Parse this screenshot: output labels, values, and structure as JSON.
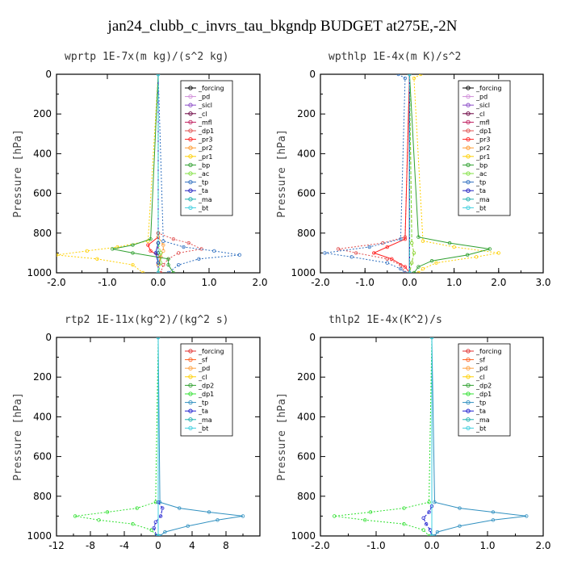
{
  "page": {
    "title": "jan24_clubb_c_invrs_tau_bkgndp  BUDGET at275E,-2N"
  },
  "chart_data": [
    {
      "type": "line",
      "title": "wprtp  1E-7x(m kg)/(s^2 kg)",
      "ylabel": "Pressure [hPa]",
      "xlim": [
        -2.0,
        2.0
      ],
      "ylim": [
        1000,
        0
      ],
      "xticks": [
        -2.0,
        -1.0,
        0.0,
        1.0,
        2.0
      ],
      "xtick_labels": [
        "-2.0",
        "-1.0",
        "0.0",
        "1.0",
        "2.0"
      ],
      "yticks": [
        0,
        200,
        400,
        600,
        800,
        1000
      ],
      "ytick_labels": [
        "0",
        "200",
        "400",
        "600",
        "800",
        "1000"
      ],
      "legend_position": "top-right",
      "series": [
        {
          "name": "_forcing",
          "color": "#000000",
          "pressure": [
            0,
            800,
            850,
            900,
            950,
            1000
          ],
          "values": [
            0,
            0,
            0,
            0,
            0,
            0
          ]
        },
        {
          "name": "_pd",
          "color": "#d08cd8",
          "pressure": [
            0,
            1000
          ],
          "values": [
            0,
            0
          ]
        },
        {
          "name": "_sicl",
          "color": "#8c4cc8",
          "pressure": [
            0,
            1000
          ],
          "values": [
            0,
            0
          ]
        },
        {
          "name": "_cl",
          "color": "#6a0040",
          "pressure": [
            0,
            1000
          ],
          "values": [
            0,
            0
          ]
        },
        {
          "name": "_mfl",
          "color": "#c02060",
          "pressure": [
            0,
            1000
          ],
          "values": [
            0,
            0
          ]
        },
        {
          "name": "_dp1",
          "color": "#e05050",
          "pressure": [
            0,
            800,
            830,
            850,
            880,
            900,
            930,
            960,
            1000
          ],
          "values": [
            0,
            0,
            0.3,
            0.6,
            0.85,
            0.4,
            0.2,
            0.1,
            0.05
          ]
        },
        {
          "name": "_pr3",
          "color": "#ff2020",
          "pressure": [
            0,
            820,
            860,
            890,
            920,
            960,
            1000
          ],
          "values": [
            0,
            0,
            -0.2,
            -0.15,
            0.05,
            0,
            0
          ]
        },
        {
          "name": "_pr2",
          "color": "#ff9a30",
          "pressure": [
            0,
            820,
            860,
            890,
            920,
            960,
            1000
          ],
          "values": [
            0,
            0,
            0.1,
            0.1,
            0.05,
            0,
            0
          ]
        },
        {
          "name": "_pr1",
          "color": "#ffd000",
          "pressure": [
            0,
            840,
            870,
            890,
            910,
            930,
            960,
            1000
          ],
          "values": [
            0,
            -0.2,
            -0.8,
            -1.4,
            -2.0,
            -1.2,
            -0.5,
            -0.3
          ]
        },
        {
          "name": "_bp",
          "color": "#30a030",
          "pressure": [
            0,
            830,
            860,
            880,
            900,
            930,
            960,
            1000
          ],
          "values": [
            0,
            -0.15,
            -0.5,
            -0.9,
            -0.5,
            0.2,
            0.2,
            0.3
          ]
        },
        {
          "name": "_ac",
          "color": "#80e040",
          "pressure": [
            0,
            850,
            900,
            950,
            1000
          ],
          "values": [
            0,
            0,
            0.05,
            0.05,
            0
          ]
        },
        {
          "name": "_tp",
          "color": "#3070c0",
          "pressure": [
            0,
            840,
            870,
            890,
            910,
            930,
            960,
            1000
          ],
          "values": [
            0,
            0.1,
            0.5,
            1.1,
            1.6,
            0.8,
            0.4,
            0.2
          ]
        },
        {
          "name": "_ta",
          "color": "#2020c0",
          "pressure": [
            0,
            850,
            900,
            950,
            1000
          ],
          "values": [
            0,
            0,
            -0.05,
            0,
            0
          ]
        },
        {
          "name": "_ma",
          "color": "#20b0b0",
          "pressure": [
            0,
            1000
          ],
          "values": [
            0,
            0
          ]
        },
        {
          "name": "_bt",
          "color": "#40d0e0",
          "pressure": [
            0,
            1000
          ],
          "values": [
            0,
            0
          ]
        }
      ]
    },
    {
      "type": "line",
      "title": "wpthlp  1E-4x(m K)/s^2",
      "ylabel": "Pressure [hPa]",
      "xlim": [
        -2.0,
        3.0
      ],
      "ylim": [
        1000,
        0
      ],
      "xticks": [
        -2.0,
        -1.0,
        0.0,
        1.0,
        2.0,
        3.0
      ],
      "xtick_labels": [
        "-2.0",
        "-1.0",
        "0.0",
        "1.0",
        "2.0",
        "3.0"
      ],
      "yticks": [
        0,
        200,
        400,
        600,
        800,
        1000
      ],
      "ytick_labels": [
        "0",
        "200",
        "400",
        "600",
        "800",
        "1000"
      ],
      "legend_position": "top-right",
      "series": [
        {
          "name": "_forcing",
          "color": "#000000",
          "pressure": [
            0,
            1000
          ],
          "values": [
            0,
            0
          ]
        },
        {
          "name": "_pd",
          "color": "#d08cd8",
          "pressure": [
            0,
            1000
          ],
          "values": [
            0,
            0
          ]
        },
        {
          "name": "_sicl",
          "color": "#8c4cc8",
          "pressure": [
            0,
            1000
          ],
          "values": [
            0,
            0
          ]
        },
        {
          "name": "_cl",
          "color": "#6a0040",
          "pressure": [
            0,
            1000
          ],
          "values": [
            0,
            0
          ]
        },
        {
          "name": "_mfl",
          "color": "#c02060",
          "pressure": [
            0,
            1000
          ],
          "values": [
            0,
            0
          ]
        },
        {
          "name": "_dp1",
          "color": "#e05050",
          "pressure": [
            0,
            820,
            850,
            880,
            900,
            930,
            960,
            1000
          ],
          "values": [
            0,
            -0.1,
            -0.6,
            -1.6,
            -1.2,
            -0.5,
            -0.2,
            -0.1
          ]
        },
        {
          "name": "_pr3",
          "color": "#ff2020",
          "pressure": [
            0,
            830,
            870,
            900,
            930,
            970,
            1000
          ],
          "values": [
            0,
            -0.1,
            -0.5,
            -0.8,
            -0.4,
            -0.1,
            0
          ]
        },
        {
          "name": "_pr2",
          "color": "#ff9a30",
          "pressure": [
            0,
            850,
            900,
            950,
            1000
          ],
          "values": [
            0,
            0.05,
            0.1,
            0.05,
            0
          ]
        },
        {
          "name": "_pr1",
          "color": "#ffd000",
          "pressure": [
            0,
            20,
            840,
            870,
            900,
            920,
            950,
            980,
            1000
          ],
          "values": [
            0.25,
            0.1,
            0.3,
            1.0,
            2.0,
            1.5,
            0.6,
            0.3,
            0.2
          ]
        },
        {
          "name": "_bp",
          "color": "#30a030",
          "pressure": [
            0,
            820,
            850,
            880,
            910,
            940,
            970,
            1000
          ],
          "values": [
            0,
            0.2,
            0.9,
            1.8,
            1.3,
            0.5,
            0.2,
            0.1
          ]
        },
        {
          "name": "_ac",
          "color": "#80e040",
          "pressure": [
            0,
            850,
            900,
            950,
            1000
          ],
          "values": [
            0,
            0.05,
            0.1,
            0.05,
            0
          ]
        },
        {
          "name": "_tp",
          "color": "#3070c0",
          "pressure": [
            0,
            20,
            830,
            870,
            900,
            920,
            950,
            980,
            1000
          ],
          "values": [
            -0.25,
            -0.1,
            -0.2,
            -0.9,
            -1.9,
            -1.3,
            -0.5,
            -0.2,
            -0.1
          ]
        },
        {
          "name": "_ta",
          "color": "#2020c0",
          "pressure": [
            0,
            1000
          ],
          "values": [
            0,
            0
          ]
        },
        {
          "name": "_ma",
          "color": "#20b0b0",
          "pressure": [
            0,
            1000
          ],
          "values": [
            0,
            0
          ]
        },
        {
          "name": "_bt",
          "color": "#40d0e0",
          "pressure": [
            0,
            1000
          ],
          "values": [
            0,
            0
          ]
        }
      ]
    },
    {
      "type": "line",
      "title": "rtp2  1E-11x(kg^2)/(kg^2 s)",
      "ylabel": "Pressure [hPa]",
      "xlim": [
        -12,
        12
      ],
      "ylim": [
        1000,
        0
      ],
      "xticks": [
        -12,
        -8,
        -4,
        0,
        4,
        8
      ],
      "xtick_labels": [
        "-12",
        "-8",
        "-4",
        "0",
        "4",
        "8"
      ],
      "yticks": [
        0,
        200,
        400,
        600,
        800,
        1000
      ],
      "ytick_labels": [
        "0",
        "200",
        "400",
        "600",
        "800",
        "1000"
      ],
      "legend_position": "top-right",
      "series": [
        {
          "name": "_forcing",
          "color": "#e03030",
          "pressure": [
            0,
            1000
          ],
          "values": [
            0,
            0
          ]
        },
        {
          "name": "_sf",
          "color": "#ff6020",
          "pressure": [
            0,
            1000
          ],
          "values": [
            0,
            0
          ]
        },
        {
          "name": "_pd",
          "color": "#ffa040",
          "pressure": [
            0,
            1000
          ],
          "values": [
            0,
            0
          ]
        },
        {
          "name": "_cl",
          "color": "#ffd000",
          "pressure": [
            0,
            1000
          ],
          "values": [
            0,
            0
          ]
        },
        {
          "name": "_dp2",
          "color": "#30a030",
          "pressure": [
            0,
            1000
          ],
          "values": [
            0,
            0
          ]
        },
        {
          "name": "_dp1",
          "color": "#30e030",
          "pressure": [
            0,
            830,
            860,
            880,
            900,
            920,
            940,
            970,
            1000
          ],
          "values": [
            0,
            -0.3,
            -2.5,
            -6.0,
            -9.8,
            -7.0,
            -3.0,
            -0.8,
            -0.2
          ]
        },
        {
          "name": "_tp",
          "color": "#3090c0",
          "pressure": [
            0,
            830,
            860,
            880,
            900,
            920,
            950,
            980,
            1000
          ],
          "values": [
            0,
            0.2,
            2.5,
            6.0,
            10.0,
            7.0,
            3.5,
            0.8,
            0.2
          ]
        },
        {
          "name": "_ta",
          "color": "#2020d0",
          "pressure": [
            0,
            830,
            860,
            900,
            930,
            960,
            1000
          ],
          "values": [
            0,
            0,
            0.5,
            0.3,
            -0.3,
            -0.5,
            -0.2
          ]
        },
        {
          "name": "_ma",
          "color": "#20b0b0",
          "pressure": [
            0,
            1000
          ],
          "values": [
            0,
            0
          ]
        },
        {
          "name": "_bt",
          "color": "#40d0e0",
          "pressure": [
            0,
            1000
          ],
          "values": [
            0,
            0
          ]
        }
      ]
    },
    {
      "type": "line",
      "title": "thlp2  1E-4x(K^2)/s",
      "ylabel": "Pressure [hPa]",
      "xlim": [
        -2.0,
        2.0
      ],
      "ylim": [
        1000,
        0
      ],
      "xticks": [
        -2.0,
        -1.0,
        0.0,
        1.0,
        2.0
      ],
      "xtick_labels": [
        "-2.0",
        "-1.0",
        "0.0",
        "1.0",
        "2.0"
      ],
      "yticks": [
        0,
        200,
        400,
        600,
        800,
        1000
      ],
      "ytick_labels": [
        "0",
        "200",
        "400",
        "600",
        "800",
        "1000"
      ],
      "legend_position": "top-right",
      "series": [
        {
          "name": "_forcing",
          "color": "#e03030",
          "pressure": [
            0,
            1000
          ],
          "values": [
            0,
            0
          ]
        },
        {
          "name": "_sf",
          "color": "#ff6020",
          "pressure": [
            0,
            1000
          ],
          "values": [
            0,
            0
          ]
        },
        {
          "name": "_pd",
          "color": "#ffa040",
          "pressure": [
            0,
            1000
          ],
          "values": [
            0,
            0
          ]
        },
        {
          "name": "_cl",
          "color": "#ffd000",
          "pressure": [
            0,
            1000
          ],
          "values": [
            0,
            0
          ]
        },
        {
          "name": "_dp2",
          "color": "#30a030",
          "pressure": [
            0,
            1000
          ],
          "values": [
            0,
            0
          ]
        },
        {
          "name": "_dp1",
          "color": "#30e030",
          "pressure": [
            0,
            830,
            860,
            880,
            900,
            920,
            940,
            970,
            1000
          ],
          "values": [
            0,
            -0.05,
            -0.5,
            -1.1,
            -1.75,
            -1.2,
            -0.5,
            -0.15,
            -0.05
          ]
        },
        {
          "name": "_tp",
          "color": "#3090c0",
          "pressure": [
            0,
            830,
            860,
            880,
            900,
            920,
            950,
            980,
            1000
          ],
          "values": [
            0,
            0.05,
            0.5,
            1.1,
            1.7,
            1.1,
            0.5,
            0.1,
            0.05
          ]
        },
        {
          "name": "_ta",
          "color": "#2020d0",
          "pressure": [
            0,
            850,
            880,
            910,
            940,
            970,
            1000
          ],
          "values": [
            0,
            0,
            -0.05,
            -0.15,
            -0.1,
            -0.03,
            0
          ]
        },
        {
          "name": "_ma",
          "color": "#20b0b0",
          "pressure": [
            0,
            1000
          ],
          "values": [
            0,
            0
          ]
        },
        {
          "name": "_bt",
          "color": "#40d0e0",
          "pressure": [
            0,
            1000
          ],
          "values": [
            0,
            0
          ]
        }
      ]
    }
  ]
}
